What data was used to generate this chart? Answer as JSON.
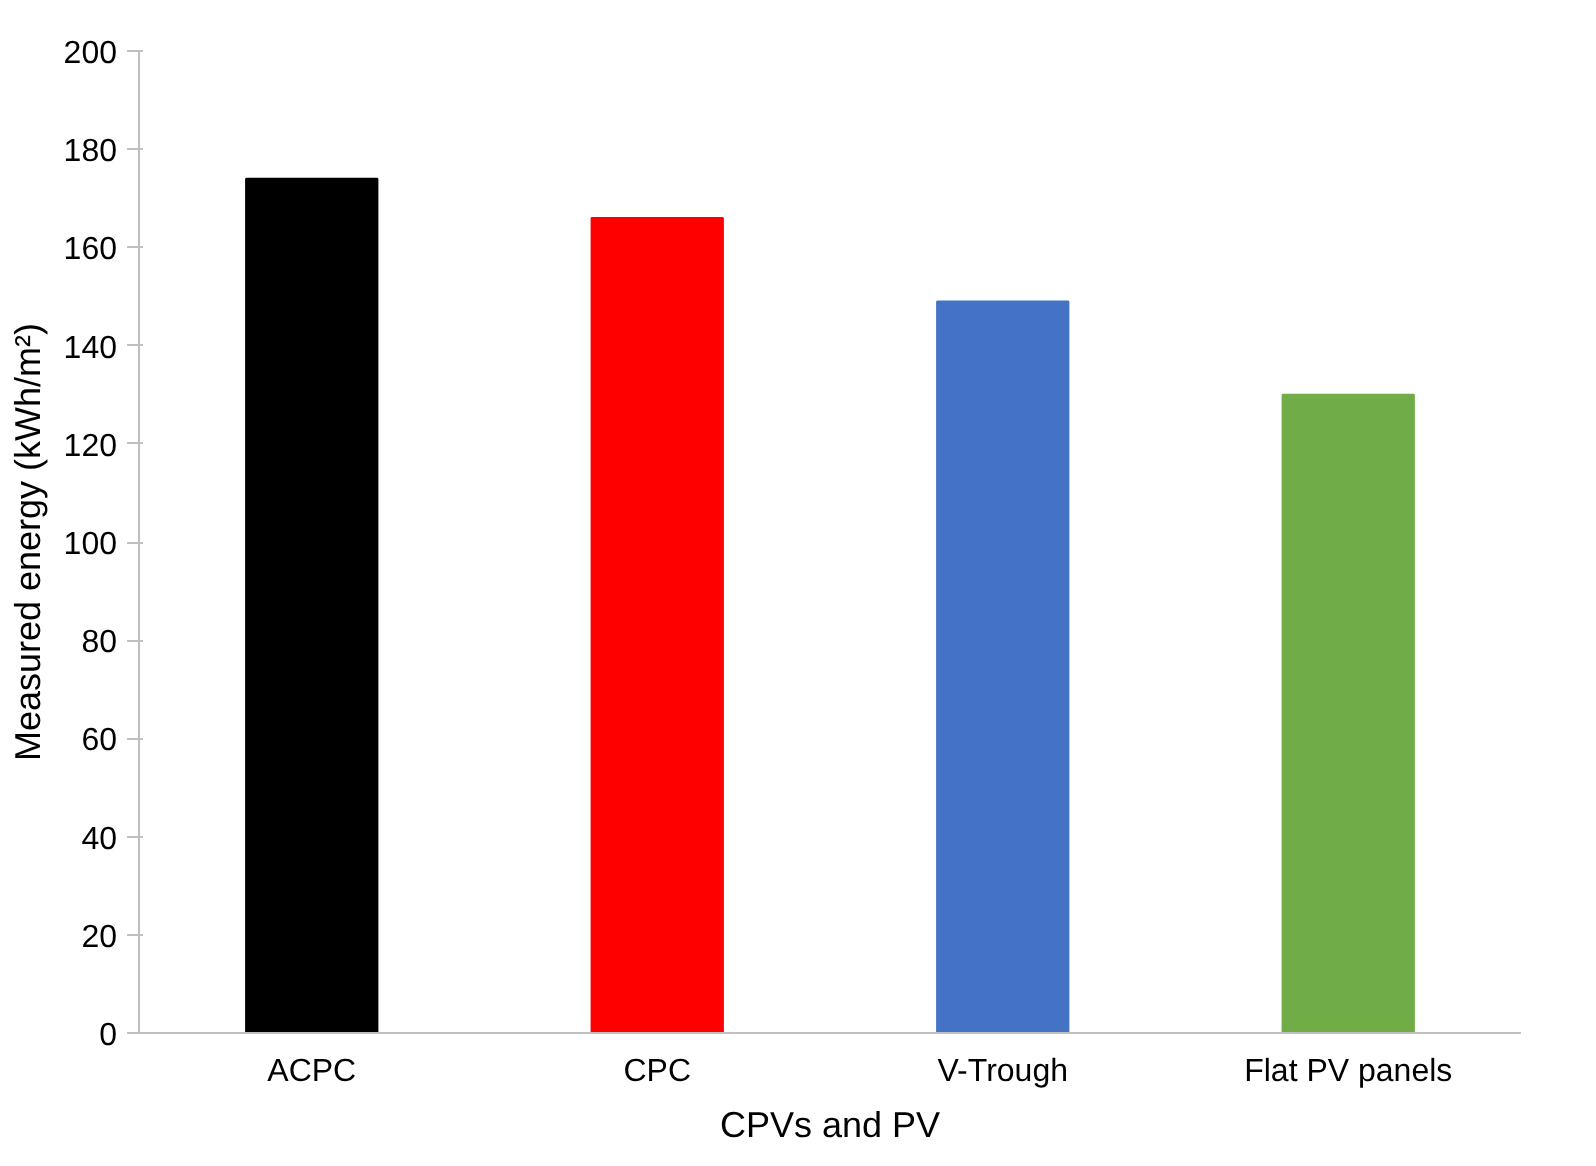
{
  "chart_data": {
    "type": "bar",
    "xlabel": "CPVs and PV",
    "ylabel": "Measured energy (kWh/m²)",
    "categories": [
      "ACPC",
      "CPC",
      "V-Trough",
      "Flat PV panels"
    ],
    "values": [
      174,
      166,
      149,
      130
    ],
    "colors": [
      "#000000",
      "#ff0000",
      "#4472c4",
      "#70ad47"
    ],
    "ylim": [
      0,
      200
    ],
    "yticks": [
      0,
      20,
      40,
      60,
      80,
      100,
      120,
      140,
      160,
      180,
      200
    ],
    "grid": false
  }
}
